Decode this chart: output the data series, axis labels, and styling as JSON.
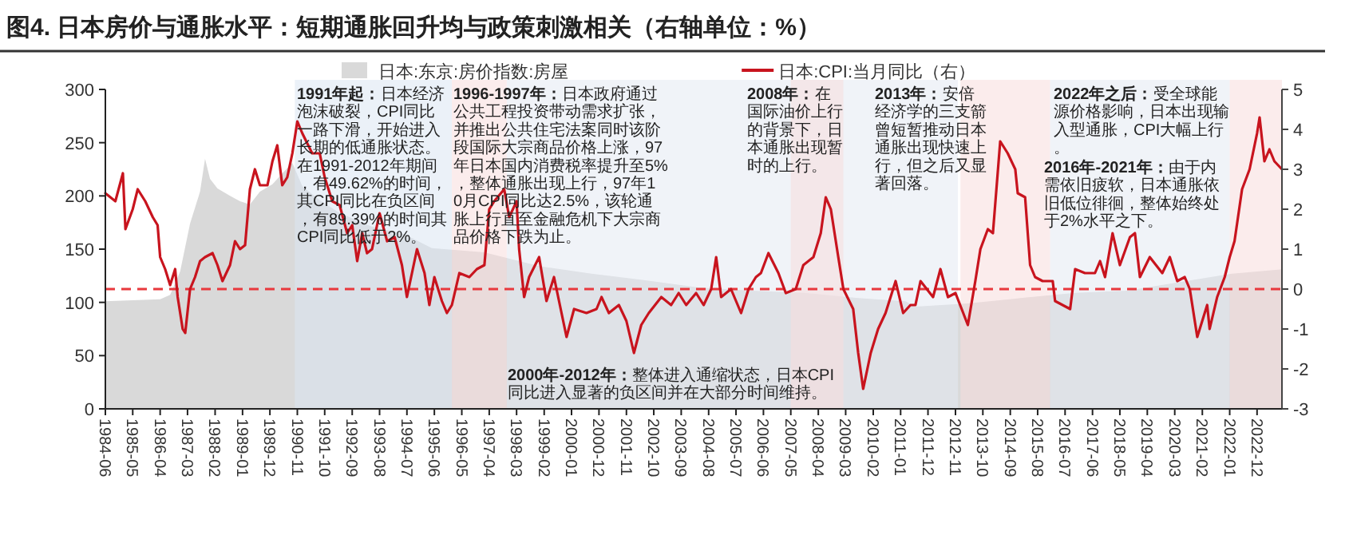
{
  "chart_data": {
    "type": "line",
    "title": "图4. 日本房价与通胀水平：短期通胀回升均与政策刺激相关（右轴单位：%）",
    "xlim": [
      "1984-06",
      "2023-10"
    ],
    "xticks": [
      "1984-06",
      "1985-05",
      "1986-04",
      "1987-03",
      "1988-02",
      "1989-01",
      "1989-12",
      "1990-11",
      "1991-10",
      "1992-09",
      "1993-08",
      "1994-07",
      "1995-06",
      "1996-05",
      "1997-04",
      "1998-03",
      "1999-02",
      "2000-01",
      "2000-12",
      "2001-11",
      "2002-10",
      "2003-09",
      "2004-08",
      "2005-07",
      "2006-06",
      "2007-05",
      "2008-04",
      "2009-03",
      "2010-02",
      "2011-01",
      "2011-12",
      "2012-11",
      "2013-10",
      "2014-09",
      "2015-08",
      "2016-07",
      "2017-06",
      "2018-05",
      "2019-04",
      "2020-03",
      "2021-02",
      "2022-01",
      "2022-12"
    ],
    "ylim": [
      0,
      300
    ],
    "yticks": [
      0,
      50,
      100,
      150,
      200,
      250,
      300
    ],
    "y2lim": [
      -3,
      5
    ],
    "y2ticks": [
      -3,
      -2,
      -1,
      0,
      1,
      2,
      3,
      4,
      5
    ],
    "legend": "top",
    "series": [
      {
        "name": "日本:东京:房价指数:房屋",
        "type": "area",
        "color": "#d9d9d9",
        "x": [
          "1984-06",
          "1986-04",
          "1986-08",
          "1986-12",
          "1987-04",
          "1987-08",
          "1987-10",
          "1987-12",
          "1988-03",
          "1988-08",
          "1988-12",
          "1989-04",
          "1989-08",
          "1990-01",
          "1990-05",
          "1990-09",
          "1991-01",
          "1991-08",
          "1992-04",
          "1993-05",
          "1994-06",
          "1995-05",
          "1997-02",
          "1998-12",
          "2000-09",
          "2002-06",
          "2004-04",
          "2006-01",
          "2007-10",
          "2009-08",
          "2011-03",
          "2011-07",
          "2013-04",
          "2015-01",
          "2016-11",
          "2018-08",
          "2020-05",
          "2022-02",
          "2023-10"
        ],
        "values": [
          101,
          103,
          107,
          129,
          174,
          204,
          235,
          216,
          207,
          200,
          195,
          192,
          204,
          211,
          221,
          231,
          209,
          196,
          184,
          171,
          164,
          151,
          147,
          134,
          127,
          121,
          114,
          111,
          109,
          104,
          101,
          96,
          99,
          104,
          109,
          111,
          119,
          127,
          131
        ]
      },
      {
        "name": "日本:CPI:当月同比（右）",
        "type": "line",
        "axis": "y2",
        "color": "#c8141e",
        "x": [
          "1984-06",
          "1984-10",
          "1985-01",
          "1985-02",
          "1985-05",
          "1985-07",
          "1985-10",
          "1986-01",
          "1986-03",
          "1986-04",
          "1986-06",
          "1986-08",
          "1986-10",
          "1986-11",
          "1987-01",
          "1987-02",
          "1987-04",
          "1987-06",
          "1987-08",
          "1987-10",
          "1988-01",
          "1988-03",
          "1988-05",
          "1988-08",
          "1988-10",
          "1988-12",
          "1989-02",
          "1989-04",
          "1989-06",
          "1989-08",
          "1989-11",
          "1990-01",
          "1990-03",
          "1990-05",
          "1990-07",
          "1990-09",
          "1990-11",
          "1991-01",
          "1991-05",
          "1991-08",
          "1991-10",
          "1992-01",
          "1992-04",
          "1992-07",
          "1992-09",
          "1992-11",
          "1993-01",
          "1993-03",
          "1993-05",
          "1993-08",
          "1993-11",
          "1994-02",
          "1994-05",
          "1994-07",
          "1994-11",
          "1995-02",
          "1995-04",
          "1995-06",
          "1995-09",
          "1995-11",
          "1996-01",
          "1996-04",
          "1996-08",
          "1996-11",
          "1997-02",
          "1997-04",
          "1997-06",
          "1997-10",
          "1997-12",
          "1998-03",
          "1998-04",
          "1998-06",
          "1998-08",
          "1998-12",
          "1999-03",
          "1999-06",
          "1999-11",
          "2000-02",
          "2000-07",
          "2000-11",
          "2001-01",
          "2001-04",
          "2001-08",
          "2001-11",
          "2002-02",
          "2002-05",
          "2002-08",
          "2003-01",
          "2003-05",
          "2003-08",
          "2003-11",
          "2004-03",
          "2004-06",
          "2004-09",
          "2004-11",
          "2005-01",
          "2005-05",
          "2005-09",
          "2005-12",
          "2006-03",
          "2006-05",
          "2006-08",
          "2006-12",
          "2007-03",
          "2007-07",
          "2007-10",
          "2008-02",
          "2008-05",
          "2008-07",
          "2008-09",
          "2008-12",
          "2009-02",
          "2009-06",
          "2009-08",
          "2009-10",
          "2010-01",
          "2010-04",
          "2010-07",
          "2010-11",
          "2011-02",
          "2011-05",
          "2011-07",
          "2011-09",
          "2012-02",
          "2012-05",
          "2012-08",
          "2012-11",
          "2013-04",
          "2013-07",
          "2013-09",
          "2013-12",
          "2014-02",
          "2014-05",
          "2014-08",
          "2014-11",
          "2014-12",
          "2015-03",
          "2015-05",
          "2015-07",
          "2015-10",
          "2016-02",
          "2016-03",
          "2016-06",
          "2016-09",
          "2016-11",
          "2017-03",
          "2017-07",
          "2017-09",
          "2017-11",
          "2018-02",
          "2018-05",
          "2018-09",
          "2018-11",
          "2019-01",
          "2019-05",
          "2019-10",
          "2020-01",
          "2020-04",
          "2020-07",
          "2020-09",
          "2020-12",
          "2021-04",
          "2021-05",
          "2021-08",
          "2021-11",
          "2022-01",
          "2022-03",
          "2022-06",
          "2022-09",
          "2022-12",
          "2023-01",
          "2023-03",
          "2023-05",
          "2023-07",
          "2023-10"
        ],
        "values": [
          2.4,
          2.2,
          2.9,
          1.5,
          2.0,
          2.5,
          2.2,
          1.8,
          1.6,
          0.8,
          0.5,
          0.1,
          0.5,
          -0.2,
          -1.0,
          -1.1,
          0.0,
          0.3,
          0.7,
          0.8,
          0.9,
          0.6,
          0.2,
          0.6,
          1.2,
          1.0,
          1.1,
          2.5,
          3.0,
          2.6,
          2.6,
          3.2,
          3.6,
          2.6,
          2.8,
          3.4,
          4.2,
          3.9,
          3.4,
          3.4,
          2.8,
          2.2,
          2.1,
          1.4,
          1.6,
          0.7,
          1.4,
          0.9,
          1.0,
          1.9,
          1.2,
          1.3,
          0.6,
          -0.2,
          1.0,
          0.4,
          -0.4,
          0.3,
          -0.3,
          -0.6,
          -0.4,
          0.4,
          0.3,
          0.5,
          0.6,
          2.0,
          2.2,
          2.5,
          1.8,
          2.2,
          1.0,
          -0.2,
          0.3,
          0.8,
          -0.3,
          0.3,
          -1.2,
          -0.5,
          -0.6,
          -0.5,
          -0.2,
          -0.6,
          -0.4,
          -0.8,
          -1.6,
          -0.9,
          -0.6,
          -0.2,
          -0.4,
          -0.1,
          -0.4,
          -0.1,
          -0.4,
          0.0,
          0.8,
          -0.2,
          0.0,
          -0.6,
          0.0,
          0.3,
          0.4,
          0.9,
          0.4,
          -0.1,
          0.0,
          0.6,
          0.8,
          1.4,
          2.3,
          2.0,
          0.8,
          0.0,
          -0.5,
          -1.6,
          -2.5,
          -1.6,
          -1.0,
          -0.6,
          0.2,
          -0.6,
          -0.4,
          -0.4,
          0.2,
          -0.2,
          0.5,
          -0.2,
          -0.1,
          -0.9,
          0.2,
          1.0,
          1.5,
          1.4,
          3.7,
          3.4,
          3.0,
          2.4,
          2.3,
          0.6,
          0.3,
          0.2,
          0.2,
          -0.3,
          -0.4,
          -0.5,
          0.5,
          0.4,
          0.4,
          0.7,
          0.3,
          1.4,
          0.6,
          1.3,
          1.4,
          0.3,
          0.8,
          0.4,
          0.8,
          0.2,
          0.3,
          0.0,
          -1.2,
          -0.4,
          -1.0,
          -0.2,
          0.3,
          0.8,
          1.2,
          2.5,
          3.0,
          3.9,
          4.3,
          3.2,
          3.5,
          3.2,
          3.0
        ]
      }
    ],
    "ref_lines": [
      {
        "axis": "y2",
        "value": 0,
        "color": "#e8383d",
        "line_style": "dashed"
      }
    ],
    "bands": [
      {
        "axis": "x",
        "from": "1990-10",
        "to": "1996-01",
        "color": "#dbe5f3",
        "label": "1991年起：日本经济泡沫破裂，CPI同比一路下滑，开始进入长期的低通胀状态。在1991-2012年期间，有49.62%的时间，其CPI同比在负区间，有89.39%的时间其CPI同比低于2%。"
      },
      {
        "axis": "x",
        "from": "1996-01",
        "to": "1997-11",
        "color": "#f7dcdc",
        "label": "1996-1997年：日本政府通过公共工程投资带动需求扩张，并推出公共住宅法案同时该阶段国际大宗商品价格上涨，97年日本国内消费税率提升至5%，整体通胀出现上行，97年10月CPI同比达2.5%，该轮通胀上行直至金融危机下大宗商品价格下跌为止。"
      },
      {
        "axis": "x",
        "from": "1997-11",
        "to": "2012-12",
        "color": "#e4eaf3",
        "label": "2000年-2012年：整体进入通缩状态，日本CPI同比进入显著的负区间并在大部分时间维持。"
      },
      {
        "axis": "x",
        "from": "2007-05",
        "to": "2009-02",
        "color": "#f7dcdc",
        "label": "2008年：在国际油价上行的背景下，日本通胀出现暂时的上行。"
      },
      {
        "axis": "x",
        "from": "2013-01",
        "to": "2016-01",
        "color": "#f7dcdc",
        "label": "2013年：安倍经济学的三支箭曾短暂推动日本通胀出现快速上行，但之后又显著回落。"
      },
      {
        "axis": "x",
        "from": "2016-01",
        "to": "2022-01",
        "color": "#e4eaf3",
        "label": "2016年-2021年：由于内需依旧疲软，日本通胀依旧低位徘徊，整体始终处于2%水平之下。"
      },
      {
        "axis": "x",
        "from": "2022-01",
        "to": "2023-10",
        "color": "#f7dcdc",
        "label": "2022年之后：受全球能源价格影响，日本出现输入型通胀，CPI大幅上行。"
      }
    ]
  }
}
